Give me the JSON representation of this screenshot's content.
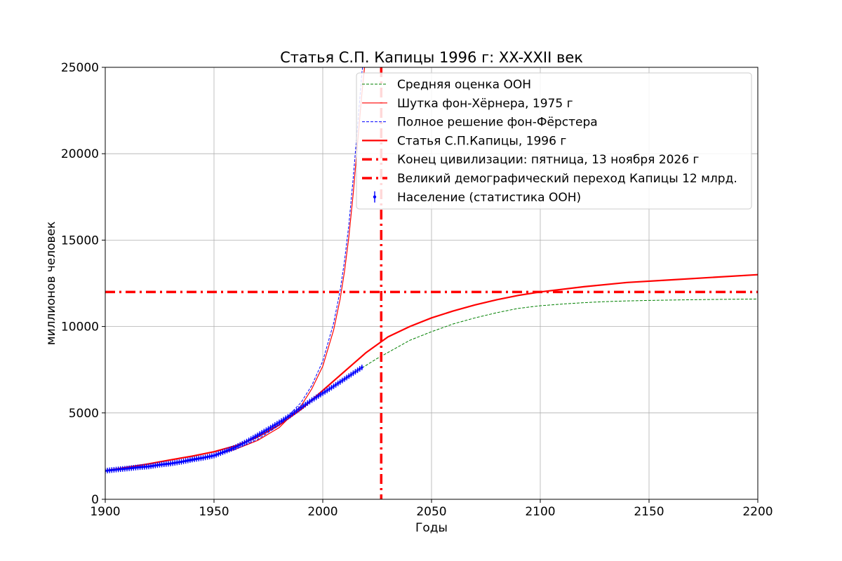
{
  "chart_data": {
    "type": "line",
    "title": "Статья С.П. Капицы 1996 г: XX-XXII век",
    "xlabel": "Годы",
    "ylabel": "миллионов человек",
    "xlim": [
      1900,
      2200
    ],
    "ylim": [
      0,
      25000
    ],
    "xticks": [
      1900,
      1950,
      2000,
      2050,
      2100,
      2150,
      2200
    ],
    "yticks": [
      0,
      5000,
      10000,
      15000,
      20000,
      25000
    ],
    "grid": true,
    "legend_position": "upper-right",
    "series": [
      {
        "name": "Средняя оценка ООН",
        "style": "dashed-thin",
        "color": "#008000",
        "x": [
          2018,
          2025,
          2030,
          2040,
          2050,
          2060,
          2070,
          2080,
          2090,
          2100,
          2110,
          2120,
          2130,
          2140,
          2150,
          2160,
          2170,
          2180,
          2190,
          2200
        ],
        "y": [
          7600,
          8150,
          8500,
          9200,
          9700,
          10150,
          10500,
          10800,
          11050,
          11200,
          11300,
          11380,
          11440,
          11480,
          11510,
          11530,
          11550,
          11565,
          11580,
          11590
        ]
      },
      {
        "name": "Шутка фон-Хёрнера, 1975 г",
        "style": "solid-thin",
        "color": "#ff0000",
        "x": [
          1900,
          1910,
          1920,
          1930,
          1940,
          1950,
          1960,
          1970,
          1980,
          1990,
          1995,
          2000,
          2005,
          2008,
          2010,
          2012,
          2014,
          2016,
          2018,
          2020
        ],
        "y": [
          1650,
          1780,
          1920,
          2080,
          2280,
          2550,
          2900,
          3400,
          4150,
          5400,
          6400,
          7700,
          9800,
          11600,
          13200,
          15200,
          17700,
          20600,
          23500,
          26000
        ]
      },
      {
        "name": "Полное решение фон-Фёрстера",
        "style": "dashed-thin",
        "color": "#0000ff",
        "x": [
          1900,
          1910,
          1920,
          1930,
          1940,
          1950,
          1960,
          1970,
          1980,
          1990,
          1995,
          2000,
          2005,
          2008,
          2010,
          2012,
          2014,
          2016,
          2018,
          2020
        ],
        "y": [
          1620,
          1740,
          1880,
          2040,
          2240,
          2520,
          2910,
          3460,
          4280,
          5600,
          6600,
          8000,
          10200,
          12100,
          13800,
          15900,
          18600,
          21600,
          24700,
          26500
        ]
      },
      {
        "name": "Статья С.П.Капицы, 1996 г",
        "style": "solid-thick",
        "color": "#ff0000",
        "x": [
          1900,
          1910,
          1920,
          1930,
          1940,
          1950,
          1960,
          1970,
          1980,
          1990,
          2000,
          2010,
          2020,
          2030,
          2040,
          2050,
          2060,
          2070,
          2080,
          2090,
          2100,
          2120,
          2140,
          2160,
          2180,
          2200
        ],
        "y": [
          1650,
          1850,
          2050,
          2280,
          2500,
          2750,
          3100,
          3600,
          4300,
          5200,
          6300,
          7400,
          8500,
          9400,
          10000,
          10500,
          10900,
          11250,
          11550,
          11800,
          12000,
          12300,
          12550,
          12700,
          12850,
          13000
        ]
      },
      {
        "name": "Население (статистика ООН)",
        "style": "markers",
        "color": "#0000ff",
        "x": [
          1900,
          1905,
          1910,
          1915,
          1920,
          1925,
          1930,
          1935,
          1940,
          1945,
          1950,
          1955,
          1960,
          1965,
          1970,
          1975,
          1980,
          1985,
          1990,
          1995,
          2000,
          2005,
          2010,
          2015,
          2018
        ],
        "y": [
          1650,
          1720,
          1780,
          1850,
          1900,
          2000,
          2070,
          2170,
          2300,
          2400,
          2530,
          2770,
          3020,
          3340,
          3700,
          4070,
          4450,
          4850,
          5310,
          5740,
          6140,
          6540,
          6960,
          7380,
          7630
        ]
      }
    ],
    "reference_lines": [
      {
        "name": "Конец цивилизации: пятница, 13 ноября 2026 г",
        "orientation": "vertical",
        "value": 2026.87,
        "color": "#ff0000",
        "style": "dashdot-thick"
      },
      {
        "name": "Великий демографический переход Капицы 12 млрд.",
        "orientation": "horizontal",
        "value": 12000,
        "color": "#ff0000",
        "style": "dashdot-thick"
      }
    ]
  }
}
